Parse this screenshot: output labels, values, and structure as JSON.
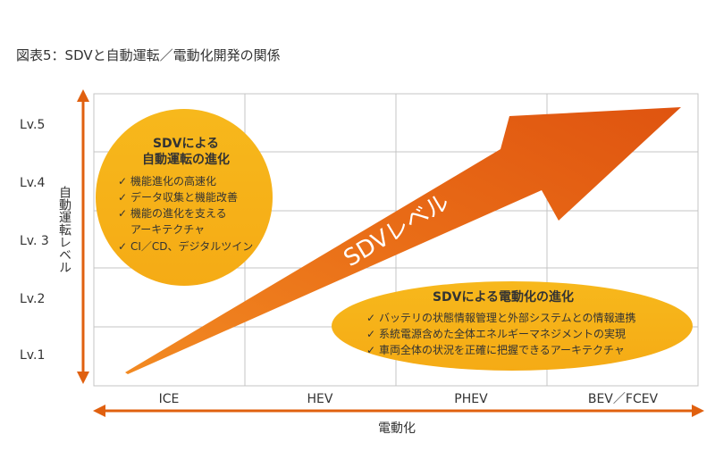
{
  "title": "図表5：SDVと自動運転／電動化開発の関係",
  "y_axis": {
    "label": "自動運転レベル",
    "ticks": [
      "Lv.5",
      "Lv.4",
      "Lv. 3",
      "Lv.2",
      "Lv.1"
    ]
  },
  "x_axis": {
    "label": "電動化",
    "ticks": [
      "ICE",
      "HEV",
      "PHEV",
      "BEV／FCEV"
    ]
  },
  "arrow_label": "SDVレベル",
  "left_circle": {
    "title_line1": "SDVによる",
    "title_line2": "自動運転の進化",
    "items": [
      {
        "check": "✓",
        "text": "機能進化の高速化"
      },
      {
        "check": "✓",
        "text": "データ収集と機能改善"
      },
      {
        "check": "✓",
        "text": "機能の進化を支える",
        "text2": "アーキテクチャ"
      },
      {
        "check": "✓",
        "text": "CI／CD、デジタルツイン"
      }
    ]
  },
  "right_ellipse": {
    "title": "SDVによる電動化の進化",
    "items": [
      {
        "check": "✓",
        "text": "バッテリの状態情報管理と外部システムとの情報連携"
      },
      {
        "check": "✓",
        "text": "系統電源含めた全体エネルギーマネジメントの実現"
      },
      {
        "check": "✓",
        "text": "車両全体の状況を正確に把握できるアーキテクチャ"
      }
    ]
  },
  "colors": {
    "axis_orange": "#e0600f",
    "grid": "#bfbfbf",
    "bubble_fill": "#f6b21a",
    "arrow_dark": "#e05a10",
    "arrow_light": "#f08a1e",
    "text_dark": "#333333",
    "text_white": "#ffffff"
  }
}
